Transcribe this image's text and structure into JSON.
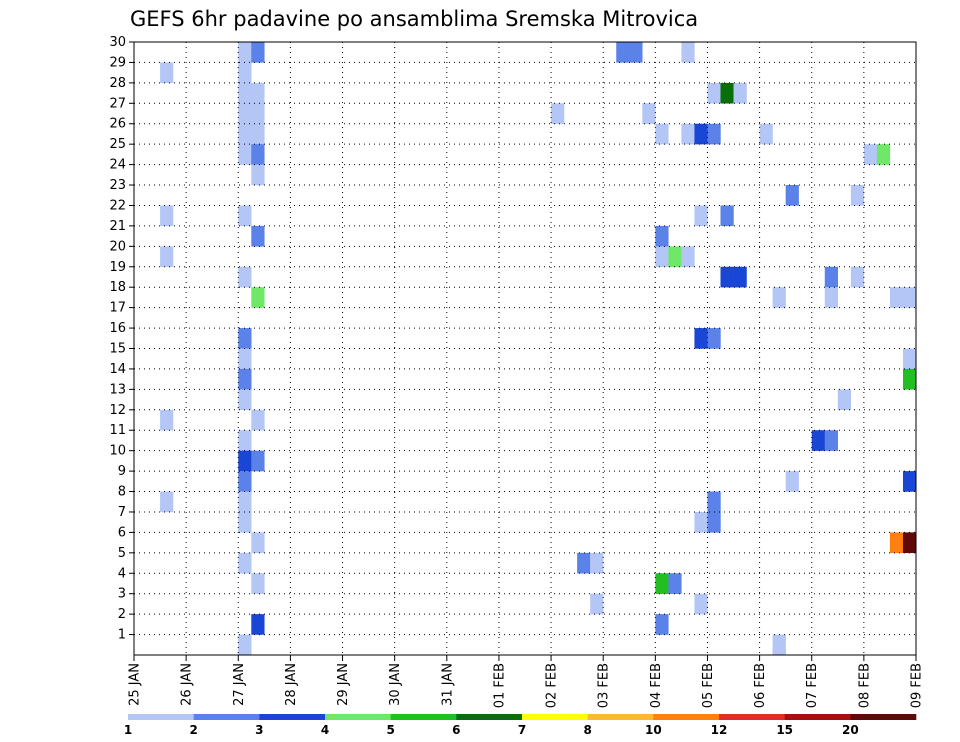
{
  "chart_data": {
    "type": "heatmap",
    "title": "GEFS 6hr padavine po ansamblima Sremska Mitrovica",
    "xlabel": "",
    "ylabel": "",
    "x_start_day": "25 JAN",
    "x_days": 15,
    "steps_per_day": 4,
    "x_tick_labels": [
      "25 JAN",
      "26 JAN",
      "27 JAN",
      "28 JAN",
      "29 JAN",
      "30 JAN",
      "31 JAN",
      "01 FEB",
      "02 FEB",
      "03 FEB",
      "04 FEB",
      "05 FEB",
      "06 FEB",
      "07 FEB",
      "08 FEB",
      "09 FEB"
    ],
    "y_range": [
      0,
      30
    ],
    "y_tick_labels": [
      "1",
      "2",
      "3",
      "4",
      "5",
      "6",
      "7",
      "8",
      "9",
      "10",
      "11",
      "12",
      "13",
      "14",
      "15",
      "16",
      "17",
      "18",
      "19",
      "20",
      "21",
      "22",
      "23",
      "24",
      "25",
      "26",
      "27",
      "28",
      "29",
      "30"
    ],
    "grid": true,
    "legend": {
      "position": "bottom",
      "bounds": [
        "1",
        "2",
        "3",
        "4",
        "5",
        "6",
        "7",
        "8",
        "10",
        "12",
        "15",
        "20"
      ],
      "colors": [
        "#b3c6f5",
        "#5b82e8",
        "#1a46d6",
        "#6fe86a",
        "#22bf22",
        "#0a6e0a",
        "#ffff00",
        "#ffb833",
        "#ff7f11",
        "#e0301e",
        "#a61010",
        "#5e0a0a"
      ]
    },
    "cells": [
      {
        "member": 30,
        "step": 8,
        "class": 0
      },
      {
        "member": 30,
        "step": 9,
        "class": 1
      },
      {
        "member": 30,
        "step": 37,
        "class": 1
      },
      {
        "member": 30,
        "step": 38,
        "class": 1
      },
      {
        "member": 30,
        "step": 42,
        "class": 0
      },
      {
        "member": 29,
        "step": 2,
        "class": 0
      },
      {
        "member": 29,
        "step": 8,
        "class": 0
      },
      {
        "member": 28,
        "step": 8,
        "class": 0
      },
      {
        "member": 28,
        "step": 9,
        "class": 0
      },
      {
        "member": 28,
        "step": 44,
        "class": 0
      },
      {
        "member": 28,
        "step": 45,
        "class": 5
      },
      {
        "member": 28,
        "step": 46,
        "class": 0
      },
      {
        "member": 27,
        "step": 8,
        "class": 0
      },
      {
        "member": 27,
        "step": 9,
        "class": 0
      },
      {
        "member": 27,
        "step": 32,
        "class": 0
      },
      {
        "member": 27,
        "step": 39,
        "class": 0
      },
      {
        "member": 26,
        "step": 8,
        "class": 0
      },
      {
        "member": 26,
        "step": 9,
        "class": 0
      },
      {
        "member": 26,
        "step": 40,
        "class": 0
      },
      {
        "member": 26,
        "step": 42,
        "class": 0
      },
      {
        "member": 26,
        "step": 43,
        "class": 2
      },
      {
        "member": 26,
        "step": 44,
        "class": 1
      },
      {
        "member": 26,
        "step": 48,
        "class": 0
      },
      {
        "member": 25,
        "step": 8,
        "class": 0
      },
      {
        "member": 25,
        "step": 9,
        "class": 1
      },
      {
        "member": 25,
        "step": 56,
        "class": 0
      },
      {
        "member": 25,
        "step": 57,
        "class": 3
      },
      {
        "member": 24,
        "step": 9,
        "class": 0
      },
      {
        "member": 23,
        "step": 50,
        "class": 1
      },
      {
        "member": 23,
        "step": 55,
        "class": 0
      },
      {
        "member": 22,
        "step": 2,
        "class": 0
      },
      {
        "member": 22,
        "step": 8,
        "class": 0
      },
      {
        "member": 22,
        "step": 43,
        "class": 0
      },
      {
        "member": 22,
        "step": 45,
        "class": 1
      },
      {
        "member": 21,
        "step": 9,
        "class": 1
      },
      {
        "member": 21,
        "step": 40,
        "class": 1
      },
      {
        "member": 20,
        "step": 2,
        "class": 0
      },
      {
        "member": 20,
        "step": 40,
        "class": 0
      },
      {
        "member": 20,
        "step": 41,
        "class": 3
      },
      {
        "member": 20,
        "step": 42,
        "class": 0
      },
      {
        "member": 19,
        "step": 8,
        "class": 0
      },
      {
        "member": 19,
        "step": 45,
        "class": 2
      },
      {
        "member": 19,
        "step": 46,
        "class": 2
      },
      {
        "member": 19,
        "step": 53,
        "class": 1
      },
      {
        "member": 19,
        "step": 55,
        "class": 0
      },
      {
        "member": 18,
        "step": 9,
        "class": 3
      },
      {
        "member": 18,
        "step": 49,
        "class": 0
      },
      {
        "member": 18,
        "step": 53,
        "class": 0
      },
      {
        "member": 18,
        "step": 58,
        "class": 0
      },
      {
        "member": 18,
        "step": 59,
        "class": 0
      },
      {
        "member": 16,
        "step": 8,
        "class": 1
      },
      {
        "member": 16,
        "step": 43,
        "class": 2
      },
      {
        "member": 16,
        "step": 44,
        "class": 1
      },
      {
        "member": 15,
        "step": 8,
        "class": 0
      },
      {
        "member": 15,
        "step": 59,
        "class": 0
      },
      {
        "member": 14,
        "step": 8,
        "class": 1
      },
      {
        "member": 14,
        "step": 59,
        "class": 4
      },
      {
        "member": 13,
        "step": 8,
        "class": 0
      },
      {
        "member": 13,
        "step": 54,
        "class": 0
      },
      {
        "member": 12,
        "step": 2,
        "class": 0
      },
      {
        "member": 12,
        "step": 9,
        "class": 0
      },
      {
        "member": 11,
        "step": 8,
        "class": 0
      },
      {
        "member": 11,
        "step": 52,
        "class": 2
      },
      {
        "member": 11,
        "step": 53,
        "class": 1
      },
      {
        "member": 10,
        "step": 8,
        "class": 2
      },
      {
        "member": 10,
        "step": 9,
        "class": 1
      },
      {
        "member": 9,
        "step": 8,
        "class": 1
      },
      {
        "member": 9,
        "step": 50,
        "class": 0
      },
      {
        "member": 9,
        "step": 59,
        "class": 2
      },
      {
        "member": 8,
        "step": 2,
        "class": 0
      },
      {
        "member": 8,
        "step": 8,
        "class": 0
      },
      {
        "member": 8,
        "step": 44,
        "class": 1
      },
      {
        "member": 7,
        "step": 8,
        "class": 0
      },
      {
        "member": 7,
        "step": 43,
        "class": 0
      },
      {
        "member": 7,
        "step": 44,
        "class": 1
      },
      {
        "member": 6,
        "step": 9,
        "class": 0
      },
      {
        "member": 6,
        "step": 58,
        "class": 8
      },
      {
        "member": 6,
        "step": 59,
        "class": 11
      },
      {
        "member": 5,
        "step": 8,
        "class": 0
      },
      {
        "member": 5,
        "step": 34,
        "class": 1
      },
      {
        "member": 5,
        "step": 35,
        "class": 0
      },
      {
        "member": 4,
        "step": 9,
        "class": 0
      },
      {
        "member": 4,
        "step": 40,
        "class": 4
      },
      {
        "member": 4,
        "step": 41,
        "class": 1
      },
      {
        "member": 3,
        "step": 35,
        "class": 0
      },
      {
        "member": 3,
        "step": 43,
        "class": 0
      },
      {
        "member": 2,
        "step": 9,
        "class": 2
      },
      {
        "member": 2,
        "step": 40,
        "class": 1
      },
      {
        "member": 1,
        "step": 8,
        "class": 0
      },
      {
        "member": 1,
        "step": 49,
        "class": 0
      }
    ]
  }
}
